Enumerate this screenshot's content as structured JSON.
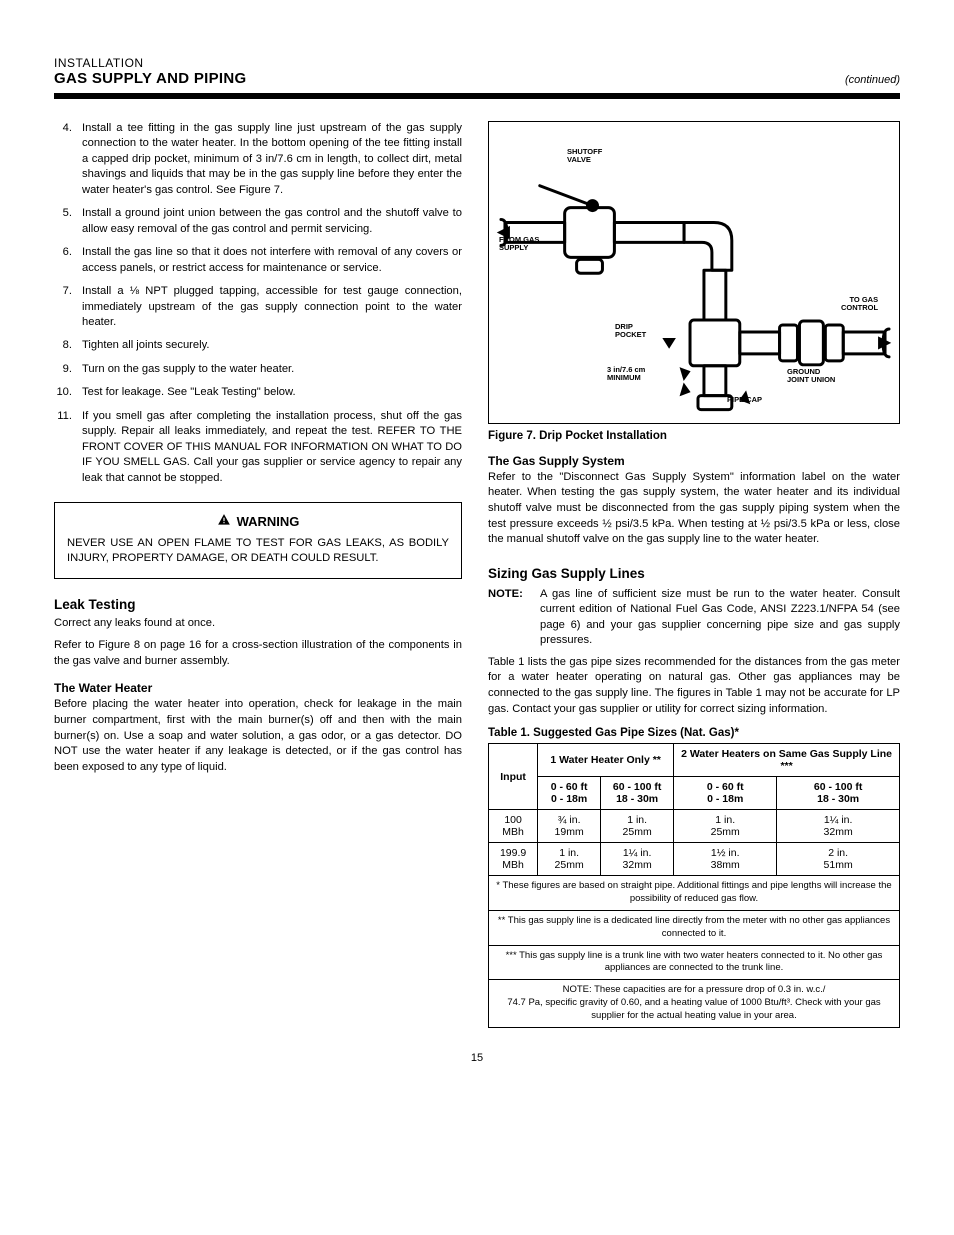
{
  "header": {
    "pre": "INSTALLATION",
    "title": "GAS SUPPLY AND PIPING",
    "sub": "(continued)"
  },
  "left": {
    "steps": [
      {
        "n": "4.",
        "t": "Install a tee fitting in the gas supply line just upstream of the gas supply connection to the water heater. In the bottom opening of the tee fitting install a capped drip pocket, minimum of 3 in/7.6 cm in length, to collect dirt, metal shavings and liquids that may be in the gas supply line before they enter the water heater's gas control. See Figure 7."
      },
      {
        "n": "5.",
        "t": "Install a ground joint union between the gas control and the shutoff valve to allow easy removal of the gas control and permit servicing."
      },
      {
        "n": "6.",
        "t": "Install the gas line so that it does not interfere with removal of any covers or access panels, or restrict access for maintenance or service."
      },
      {
        "n": "7.",
        "t": "Install a ⅛ NPT plugged tapping, accessible for test gauge connection, immediately upstream of the gas supply connection point to the water heater."
      },
      {
        "n": "8.",
        "t": "Tighten all joints securely."
      },
      {
        "n": "9.",
        "t": "Turn on the gas supply to the water heater."
      },
      {
        "n": "10.",
        "t": "Test for leakage. See \"Leak Testing\" below."
      },
      {
        "n": "11.",
        "t": "If you smell gas after completing the installation process, shut off the gas supply. Repair all leaks immediately, and repeat the test. REFER TO THE FRONT COVER OF THIS MANUAL FOR INFORMATION ON WHAT TO DO IF YOU SMELL GAS. Call your gas supplier or service agency to repair any leak that cannot be stopped."
      }
    ],
    "warn_label": "WARNING",
    "warn_body": "NEVER USE AN OPEN FLAME TO TEST FOR GAS LEAKS, AS BODILY INJURY, PROPERTY DAMAGE, OR DEATH COULD RESULT.",
    "leak_h": "Leak Testing",
    "leak_p1": "Correct any leaks found at once.",
    "leak_p2": "Refer to Figure 8 on page 16 for a cross-section illustration of the components in the gas valve and burner assembly.",
    "leak_h2": "The Water Heater",
    "leak_body": "Before placing the water heater into operation, check for leakage in the main burner compartment, first with the main burner(s) off and then with the main burner(s) on. Use a soap and water solution, a gas odor, or a gas detector. DO NOT use the water heater if any leakage is detected, or if the gas control has been exposed to any type of liquid."
  },
  "right": {
    "fig_caption": "Figure 7. Drip Pocket Installation",
    "fig_labels": {
      "shutoff": "SHUTOFF\nVALVE",
      "from": "FROM GAS\nSUPPLY",
      "drip": "DRIP\nPOCKET",
      "min": "3 in/7.6 cm\nMINIMUM",
      "union": "GROUND\nJOINT UNION",
      "cap": "PIPE CAP",
      "to": "TO GAS\nCONTROL"
    },
    "sys_h": "The Gas Supply System",
    "sys_p": "Refer to the \"Disconnect Gas Supply System\" information label on the water heater. When testing the gas supply system, the water heater and its individual shutoff valve must be disconnected from the gas supply piping system when the test pressure exceeds ½ psi/3.5 kPa. When testing at ½ psi/3.5 kPa or less, close the manual shutoff valve on the gas supply line to the water heater.",
    "sizing_h": "Sizing Gas Supply Lines",
    "sizing_note_label": "NOTE:",
    "sizing_note": "A gas line of sufficient size must be run to the water heater. Consult current edition of National Fuel Gas Code, ANSI Z223.1/NFPA 54 (see page 6) and your gas supplier concerning pipe size and gas supply pressures.",
    "sizing_p": "Table 1 lists the gas pipe sizes recommended for the distances from the gas meter for a water heater operating on natural gas. Other gas appliances may be connected to the gas supply line. The figures in Table 1 may not be accurate for LP gas. Contact your gas supplier or utility for correct sizing information.",
    "tbl_caption": "Table 1. Suggested Gas Pipe Sizes (Nat. Gas)*",
    "table": {
      "head": {
        "c1": "Input",
        "c2": "1 Water Heater Only **",
        "c3": "2 Water Heaters on Same Gas Supply Line ***",
        "sub2a": "0 - 60 ft\n0 - 18m",
        "sub2b": "60 - 100 ft\n18 - 30m",
        "sub3a": "0 - 60 ft\n0 - 18m",
        "sub3b": "60 - 100 ft\n18 - 30m"
      },
      "rows": [
        {
          "c1": "100\nMBh",
          "c2a": "¾ in.\n19mm",
          "c2b": "1 in.\n25mm",
          "c3a": "1 in.\n25mm",
          "c3b": "1¼ in.\n32mm"
        },
        {
          "c1": "199.9\nMBh",
          "c2a": "1 in.\n25mm",
          "c2b": "1¼ in.\n32mm",
          "c3a": "1½ in.\n38mm",
          "c3b": "2 in.\n51mm"
        }
      ],
      "foot": [
        "* These figures are based on straight pipe. Additional fittings and pipe lengths will increase the possibility of reduced gas flow.",
        "** This gas supply line is a dedicated line directly from the meter with no other gas appliances connected to it.",
        "*** This gas supply line is a trunk line with two water heaters connected to it. No other gas appliances are connected to the trunk line.",
        "NOTE: These capacities are for a pressure drop of 0.3 in. w.c./\n74.7 Pa, specific gravity of 0.60, and a heating value of 1000 Btu/ft³. Check with your gas supplier for the actual heating value in your area."
      ]
    }
  },
  "page_number": "15"
}
